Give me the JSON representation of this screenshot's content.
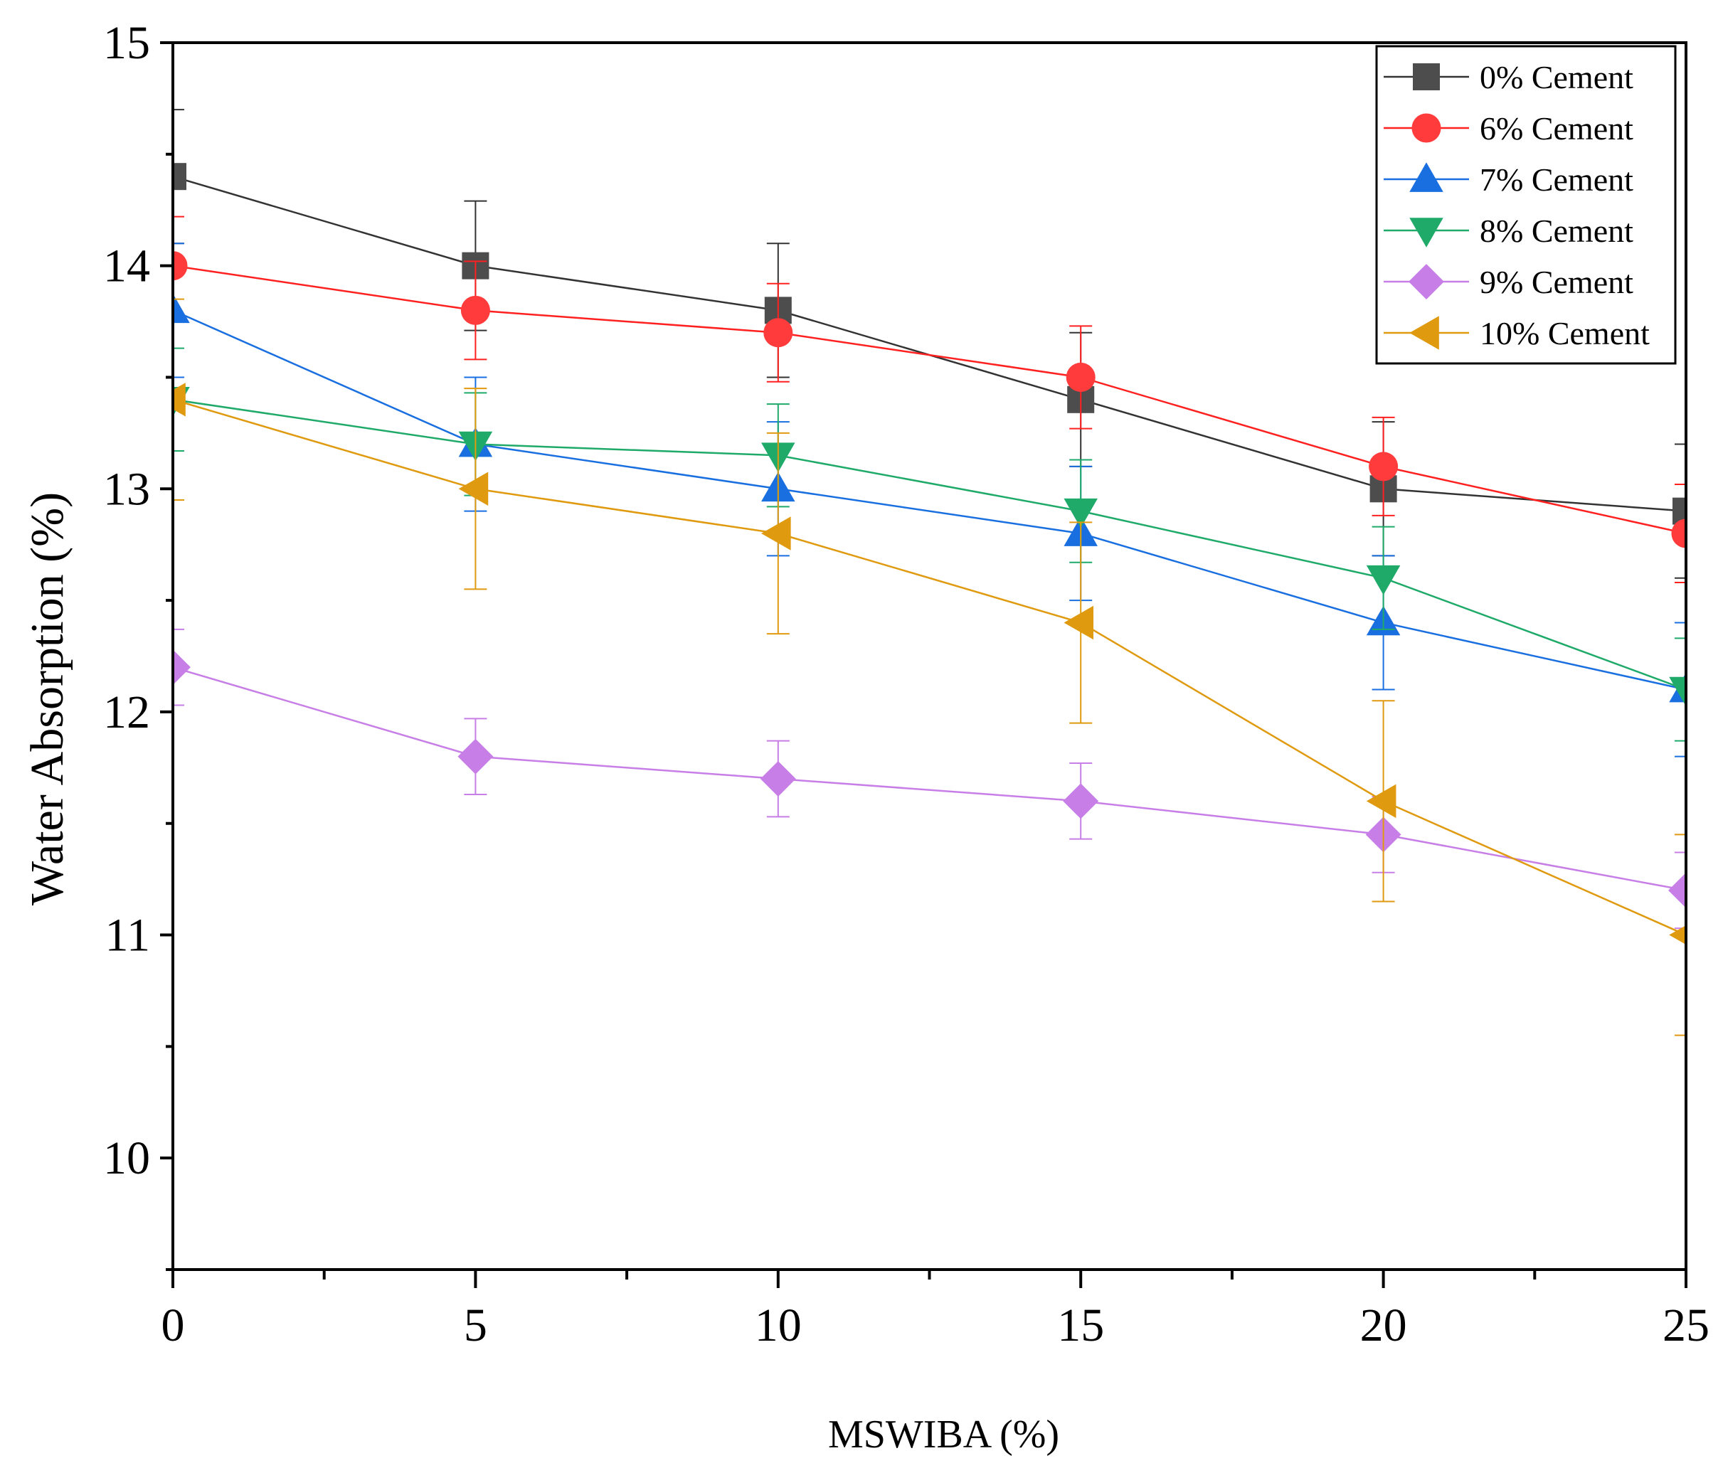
{
  "chart_data": {
    "type": "line",
    "title": "",
    "xlabel": "MSWIBA (%)",
    "ylabel": "Water Absorption (%)",
    "xlim": [
      0,
      25
    ],
    "ylim": [
      9.5,
      15
    ],
    "x_ticks": [
      0,
      5,
      10,
      15,
      20,
      25
    ],
    "x_tick_labels": [
      "0",
      "5",
      "10",
      "15",
      "20",
      "25"
    ],
    "y_ticks": [
      10,
      11,
      12,
      13,
      14,
      15
    ],
    "y_tick_labels": [
      "10",
      "11",
      "12",
      "13",
      "14",
      "15"
    ],
    "grid": false,
    "legend_position": "top-right",
    "x": [
      0,
      5,
      10,
      15,
      20,
      25
    ],
    "series": [
      {
        "name": "0% Cement",
        "marker": "square",
        "color": "#4d4d4d",
        "line_color": "#333333",
        "values": [
          14.4,
          14.0,
          13.8,
          13.4,
          13.0,
          12.9
        ],
        "errors": [
          0.3,
          0.29,
          0.3,
          0.3,
          0.3,
          0.3
        ]
      },
      {
        "name": "6% Cement",
        "marker": "circle",
        "color": "#ff3b3b",
        "line_color": "#ff2020",
        "values": [
          14.0,
          13.8,
          13.7,
          13.5,
          13.1,
          12.8
        ],
        "errors": [
          0.22,
          0.22,
          0.22,
          0.23,
          0.22,
          0.22
        ]
      },
      {
        "name": "7% Cement",
        "marker": "triangle-up",
        "color": "#1a6fe0",
        "line_color": "#1a6fe0",
        "values": [
          13.8,
          13.2,
          13.0,
          12.8,
          12.4,
          12.1
        ],
        "errors": [
          0.3,
          0.3,
          0.3,
          0.3,
          0.3,
          0.3
        ]
      },
      {
        "name": "8% Cement",
        "marker": "triangle-down",
        "color": "#1faa6a",
        "line_color": "#1faa6a",
        "values": [
          13.4,
          13.2,
          13.15,
          12.9,
          12.6,
          12.1
        ],
        "errors": [
          0.23,
          0.23,
          0.23,
          0.23,
          0.23,
          0.23
        ]
      },
      {
        "name": "9% Cement",
        "marker": "diamond",
        "color": "#c77ee6",
        "line_color": "#c77ee6",
        "values": [
          12.2,
          11.8,
          11.7,
          11.6,
          11.45,
          11.2
        ],
        "errors": [
          0.17,
          0.17,
          0.17,
          0.17,
          0.17,
          0.17
        ]
      },
      {
        "name": "10% Cement",
        "marker": "triangle-left",
        "color": "#e09a10",
        "line_color": "#e09a10",
        "values": [
          13.4,
          13.0,
          12.8,
          12.4,
          11.6,
          11.0
        ],
        "errors": [
          0.45,
          0.45,
          0.45,
          0.45,
          0.45,
          0.45
        ]
      }
    ]
  }
}
